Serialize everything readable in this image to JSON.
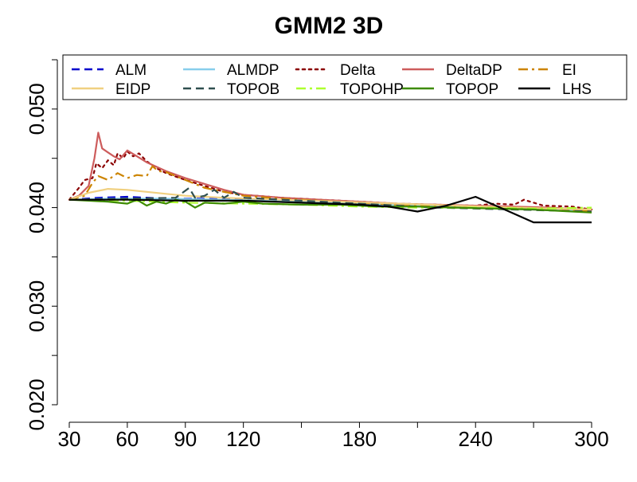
{
  "chart_data": {
    "type": "line",
    "title": "GMM2 3D",
    "xlabel": "",
    "ylabel": "",
    "xlim": [
      30,
      300
    ],
    "ylim": [
      0.02,
      0.055
    ],
    "x_ticks": [
      30,
      60,
      90,
      120,
      150,
      180,
      210,
      240,
      270,
      300
    ],
    "x_tick_labels": [
      "30",
      "60",
      "90",
      "120",
      "",
      "180",
      "",
      "240",
      "",
      "300"
    ],
    "y_ticks": [
      0.02,
      0.025,
      0.03,
      0.035,
      0.04,
      0.045,
      0.05,
      0.055
    ],
    "y_tick_labels": [
      "0.020",
      "",
      "0.030",
      "",
      "0.040",
      "",
      "0.050",
      ""
    ],
    "grid": false,
    "legend_position": "top",
    "series": [
      {
        "name": "ALM",
        "color": "#0000cc",
        "dash": "dashed",
        "points": [
          [
            30,
            0.0408
          ],
          [
            45,
            0.041
          ],
          [
            60,
            0.0411
          ],
          [
            80,
            0.0409
          ],
          [
            100,
            0.0409
          ],
          [
            120,
            0.0408
          ],
          [
            150,
            0.0406
          ],
          [
            180,
            0.0404
          ],
          [
            210,
            0.0402
          ],
          [
            240,
            0.04
          ],
          [
            270,
            0.0398
          ],
          [
            300,
            0.0396
          ]
        ]
      },
      {
        "name": "ALMDP",
        "color": "#87ceeb",
        "dash": "solid",
        "points": [
          [
            30,
            0.0408
          ],
          [
            50,
            0.0409
          ],
          [
            80,
            0.0409
          ],
          [
            110,
            0.0408
          ],
          [
            150,
            0.0406
          ],
          [
            180,
            0.0404
          ],
          [
            210,
            0.0402
          ],
          [
            240,
            0.0401
          ],
          [
            270,
            0.0399
          ],
          [
            300,
            0.0397
          ]
        ]
      },
      {
        "name": "Delta",
        "color": "#8b0000",
        "dash": "dotted",
        "points": [
          [
            30,
            0.0408
          ],
          [
            35,
            0.042
          ],
          [
            38,
            0.0428
          ],
          [
            42,
            0.043
          ],
          [
            44,
            0.0445
          ],
          [
            47,
            0.044
          ],
          [
            50,
            0.0448
          ],
          [
            53,
            0.0443
          ],
          [
            55,
            0.0455
          ],
          [
            58,
            0.045
          ],
          [
            60,
            0.0457
          ],
          [
            63,
            0.0452
          ],
          [
            66,
            0.0455
          ],
          [
            70,
            0.0447
          ],
          [
            75,
            0.044
          ],
          [
            80,
            0.0435
          ],
          [
            90,
            0.0428
          ],
          [
            100,
            0.0422
          ],
          [
            110,
            0.0416
          ],
          [
            120,
            0.0413
          ],
          [
            140,
            0.041
          ],
          [
            160,
            0.0408
          ],
          [
            180,
            0.0406
          ],
          [
            200,
            0.0404
          ],
          [
            220,
            0.0403
          ],
          [
            240,
            0.0402
          ],
          [
            250,
            0.0404
          ],
          [
            260,
            0.0403
          ],
          [
            265,
            0.0408
          ],
          [
            275,
            0.0402
          ],
          [
            290,
            0.0401
          ],
          [
            300,
            0.0398
          ]
        ]
      },
      {
        "name": "DeltaDP",
        "color": "#cd5c5c",
        "dash": "solid",
        "points": [
          [
            30,
            0.0408
          ],
          [
            35,
            0.0412
          ],
          [
            40,
            0.0422
          ],
          [
            43,
            0.045
          ],
          [
            45,
            0.0476
          ],
          [
            47,
            0.046
          ],
          [
            50,
            0.0456
          ],
          [
            53,
            0.0452
          ],
          [
            56,
            0.0449
          ],
          [
            60,
            0.0458
          ],
          [
            65,
            0.0452
          ],
          [
            70,
            0.0446
          ],
          [
            80,
            0.0437
          ],
          [
            90,
            0.043
          ],
          [
            100,
            0.0424
          ],
          [
            110,
            0.0418
          ],
          [
            120,
            0.0413
          ],
          [
            140,
            0.041
          ],
          [
            160,
            0.0408
          ],
          [
            180,
            0.0406
          ],
          [
            200,
            0.0404
          ],
          [
            220,
            0.0403
          ],
          [
            240,
            0.0402
          ],
          [
            260,
            0.0401
          ],
          [
            280,
            0.04
          ],
          [
            300,
            0.0397
          ]
        ]
      },
      {
        "name": "EI",
        "color": "#cc8400",
        "dash": "dashdot",
        "points": [
          [
            30,
            0.0408
          ],
          [
            38,
            0.0412
          ],
          [
            42,
            0.0425
          ],
          [
            45,
            0.0432
          ],
          [
            50,
            0.0428
          ],
          [
            55,
            0.0435
          ],
          [
            60,
            0.043
          ],
          [
            65,
            0.0433
          ],
          [
            70,
            0.0432
          ],
          [
            73,
            0.0442
          ],
          [
            76,
            0.0437
          ],
          [
            80,
            0.0436
          ],
          [
            90,
            0.0428
          ],
          [
            100,
            0.042
          ],
          [
            110,
            0.0416
          ],
          [
            120,
            0.0412
          ],
          [
            140,
            0.0409
          ],
          [
            160,
            0.0407
          ],
          [
            180,
            0.0405
          ],
          [
            200,
            0.0403
          ],
          [
            220,
            0.0402
          ],
          [
            240,
            0.0401
          ],
          [
            260,
            0.04
          ],
          [
            280,
            0.0399
          ],
          [
            300,
            0.0396
          ]
        ]
      },
      {
        "name": "EIDP",
        "color": "#f0d080",
        "dash": "solid",
        "points": [
          [
            30,
            0.0408
          ],
          [
            40,
            0.0415
          ],
          [
            50,
            0.0419
          ],
          [
            60,
            0.0418
          ],
          [
            70,
            0.0416
          ],
          [
            80,
            0.0414
          ],
          [
            90,
            0.0412
          ],
          [
            110,
            0.041
          ],
          [
            140,
            0.0408
          ],
          [
            170,
            0.0406
          ],
          [
            200,
            0.0404
          ],
          [
            230,
            0.0402
          ],
          [
            260,
            0.04
          ],
          [
            300,
            0.0398
          ]
        ]
      },
      {
        "name": "TOPOB",
        "color": "#2f4f4f",
        "dash": "dashed",
        "points": [
          [
            30,
            0.0408
          ],
          [
            60,
            0.0409
          ],
          [
            85,
            0.041
          ],
          [
            92,
            0.042
          ],
          [
            95,
            0.041
          ],
          [
            100,
            0.0412
          ],
          [
            105,
            0.0418
          ],
          [
            110,
            0.041
          ],
          [
            115,
            0.0416
          ],
          [
            120,
            0.041
          ],
          [
            140,
            0.0408
          ],
          [
            160,
            0.0406
          ],
          [
            180,
            0.0404
          ],
          [
            200,
            0.0402
          ],
          [
            220,
            0.04
          ],
          [
            240,
            0.0399
          ],
          [
            260,
            0.0398
          ],
          [
            280,
            0.0397
          ],
          [
            300,
            0.0396
          ]
        ]
      },
      {
        "name": "TOPOHP",
        "color": "#adff2f",
        "dash": "dashdot",
        "points": [
          [
            30,
            0.0408
          ],
          [
            60,
            0.0407
          ],
          [
            90,
            0.0405
          ],
          [
            120,
            0.0404
          ],
          [
            150,
            0.0403
          ],
          [
            180,
            0.0401
          ],
          [
            210,
            0.04
          ],
          [
            240,
            0.04
          ],
          [
            270,
            0.0399
          ],
          [
            300,
            0.04
          ]
        ]
      },
      {
        "name": "TOPOP",
        "color": "#3d8b00",
        "dash": "solid",
        "points": [
          [
            30,
            0.0408
          ],
          [
            50,
            0.0406
          ],
          [
            60,
            0.0404
          ],
          [
            65,
            0.0408
          ],
          [
            70,
            0.0402
          ],
          [
            75,
            0.0406
          ],
          [
            80,
            0.0404
          ],
          [
            85,
            0.0408
          ],
          [
            90,
            0.0406
          ],
          [
            95,
            0.04
          ],
          [
            100,
            0.0405
          ],
          [
            110,
            0.0404
          ],
          [
            120,
            0.0406
          ],
          [
            130,
            0.0404
          ],
          [
            150,
            0.0403
          ],
          [
            170,
            0.0403
          ],
          [
            190,
            0.0401
          ],
          [
            210,
            0.0401
          ],
          [
            230,
            0.04
          ],
          [
            250,
            0.0399
          ],
          [
            270,
            0.0398
          ],
          [
            300,
            0.0395
          ]
        ]
      },
      {
        "name": "LHS",
        "color": "#000000",
        "dash": "solid",
        "points": [
          [
            30,
            0.0408
          ],
          [
            60,
            0.0408
          ],
          [
            90,
            0.0407
          ],
          [
            120,
            0.0407
          ],
          [
            150,
            0.0405
          ],
          [
            180,
            0.0403
          ],
          [
            195,
            0.0401
          ],
          [
            210,
            0.0396
          ],
          [
            225,
            0.0402
          ],
          [
            240,
            0.0411
          ],
          [
            255,
            0.0398
          ],
          [
            270,
            0.0385
          ],
          [
            285,
            0.0385
          ],
          [
            300,
            0.0385
          ]
        ]
      }
    ]
  }
}
